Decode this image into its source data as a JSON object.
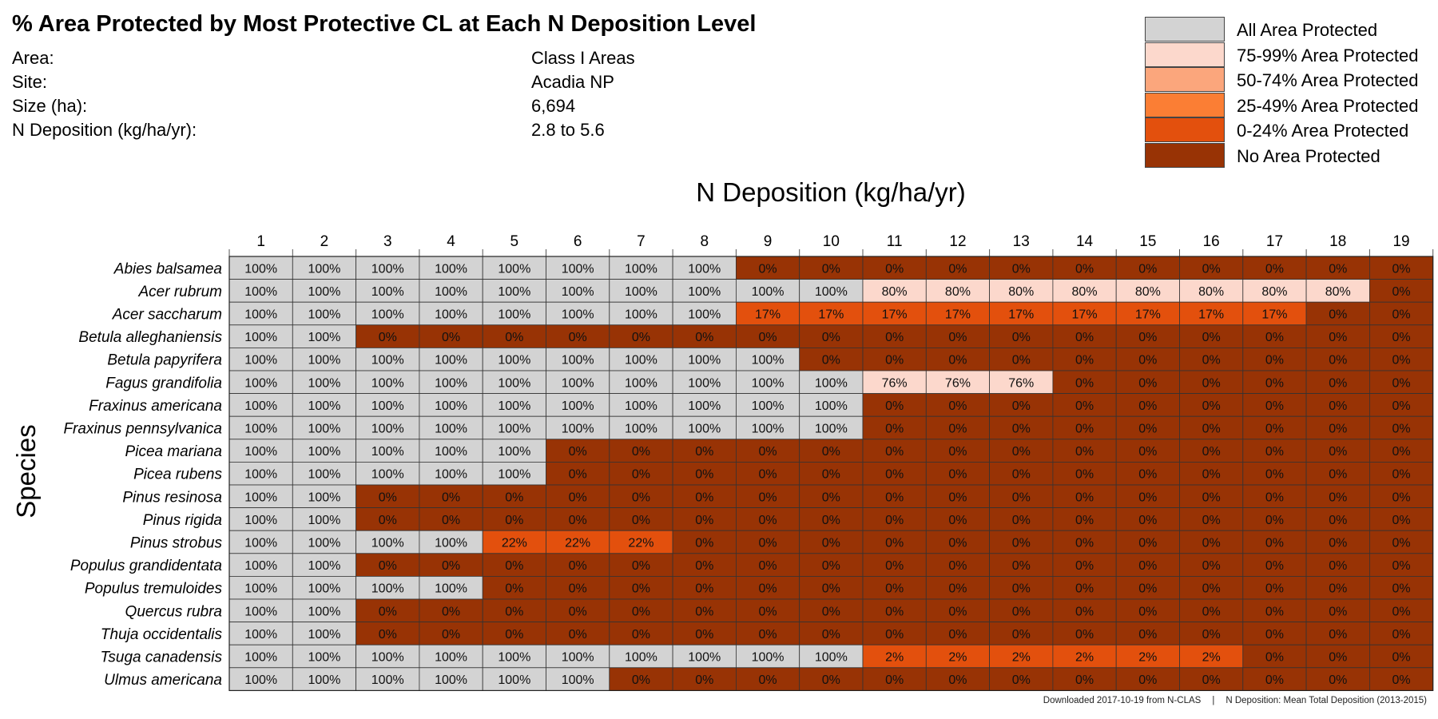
{
  "title": "% Area Protected by Most Protective CL at Each N Deposition Level",
  "info": [
    {
      "label": "Area:",
      "value": "Class I Areas"
    },
    {
      "label": "Site:",
      "value": "Acadia NP"
    },
    {
      "label": "Size (ha):",
      "value": "6,694"
    },
    {
      "label": "N Deposition (kg/ha/yr):",
      "value": "2.8 to 5.6"
    }
  ],
  "legend": [
    {
      "label": "All Area Protected",
      "color": "#d3d3d3"
    },
    {
      "label": "75-99% Area Protected",
      "color": "#fcd8cc"
    },
    {
      "label": "50-74% Area Protected",
      "color": "#fba67c"
    },
    {
      "label": "25-49% Area Protected",
      "color": "#fb7e34"
    },
    {
      "label": "0-24% Area Protected",
      "color": "#e3500d"
    },
    {
      "label": "No Area Protected",
      "color": "#983305"
    }
  ],
  "footer": {
    "left": "Downloaded 2017-10-19 from N-CLAS",
    "separator": "|",
    "right": "N Deposition: Mean Total Deposition (2013-2015)"
  },
  "chart_data": {
    "type": "heatmap",
    "xlabel": "N Deposition (kg/ha/yr)",
    "ylabel": "Species",
    "x": [
      1,
      2,
      3,
      4,
      5,
      6,
      7,
      8,
      9,
      10,
      11,
      12,
      13,
      14,
      15,
      16,
      17,
      18,
      19
    ],
    "rows": [
      {
        "species": "Abies balsamea",
        "values": [
          100,
          100,
          100,
          100,
          100,
          100,
          100,
          100,
          0,
          0,
          0,
          0,
          0,
          0,
          0,
          0,
          0,
          0,
          0
        ]
      },
      {
        "species": "Acer rubrum",
        "values": [
          100,
          100,
          100,
          100,
          100,
          100,
          100,
          100,
          100,
          100,
          80,
          80,
          80,
          80,
          80,
          80,
          80,
          80,
          0
        ]
      },
      {
        "species": "Acer saccharum",
        "values": [
          100,
          100,
          100,
          100,
          100,
          100,
          100,
          100,
          17,
          17,
          17,
          17,
          17,
          17,
          17,
          17,
          17,
          0,
          0
        ]
      },
      {
        "species": "Betula alleghaniensis",
        "values": [
          100,
          100,
          0,
          0,
          0,
          0,
          0,
          0,
          0,
          0,
          0,
          0,
          0,
          0,
          0,
          0,
          0,
          0,
          0
        ]
      },
      {
        "species": "Betula papyrifera",
        "values": [
          100,
          100,
          100,
          100,
          100,
          100,
          100,
          100,
          100,
          0,
          0,
          0,
          0,
          0,
          0,
          0,
          0,
          0,
          0
        ]
      },
      {
        "species": "Fagus grandifolia",
        "values": [
          100,
          100,
          100,
          100,
          100,
          100,
          100,
          100,
          100,
          100,
          76,
          76,
          76,
          0,
          0,
          0,
          0,
          0,
          0
        ]
      },
      {
        "species": "Fraxinus americana",
        "values": [
          100,
          100,
          100,
          100,
          100,
          100,
          100,
          100,
          100,
          100,
          0,
          0,
          0,
          0,
          0,
          0,
          0,
          0,
          0
        ]
      },
      {
        "species": "Fraxinus pennsylvanica",
        "values": [
          100,
          100,
          100,
          100,
          100,
          100,
          100,
          100,
          100,
          100,
          0,
          0,
          0,
          0,
          0,
          0,
          0,
          0,
          0
        ]
      },
      {
        "species": "Picea mariana",
        "values": [
          100,
          100,
          100,
          100,
          100,
          0,
          0,
          0,
          0,
          0,
          0,
          0,
          0,
          0,
          0,
          0,
          0,
          0,
          0
        ]
      },
      {
        "species": "Picea rubens",
        "values": [
          100,
          100,
          100,
          100,
          100,
          0,
          0,
          0,
          0,
          0,
          0,
          0,
          0,
          0,
          0,
          0,
          0,
          0,
          0
        ]
      },
      {
        "species": "Pinus resinosa",
        "values": [
          100,
          100,
          0,
          0,
          0,
          0,
          0,
          0,
          0,
          0,
          0,
          0,
          0,
          0,
          0,
          0,
          0,
          0,
          0
        ]
      },
      {
        "species": "Pinus rigida",
        "values": [
          100,
          100,
          0,
          0,
          0,
          0,
          0,
          0,
          0,
          0,
          0,
          0,
          0,
          0,
          0,
          0,
          0,
          0,
          0
        ]
      },
      {
        "species": "Pinus strobus",
        "values": [
          100,
          100,
          100,
          100,
          22,
          22,
          22,
          0,
          0,
          0,
          0,
          0,
          0,
          0,
          0,
          0,
          0,
          0,
          0
        ]
      },
      {
        "species": "Populus grandidentata",
        "values": [
          100,
          100,
          0,
          0,
          0,
          0,
          0,
          0,
          0,
          0,
          0,
          0,
          0,
          0,
          0,
          0,
          0,
          0,
          0
        ]
      },
      {
        "species": "Populus tremuloides",
        "values": [
          100,
          100,
          100,
          100,
          0,
          0,
          0,
          0,
          0,
          0,
          0,
          0,
          0,
          0,
          0,
          0,
          0,
          0,
          0
        ]
      },
      {
        "species": "Quercus rubra",
        "values": [
          100,
          100,
          0,
          0,
          0,
          0,
          0,
          0,
          0,
          0,
          0,
          0,
          0,
          0,
          0,
          0,
          0,
          0,
          0
        ]
      },
      {
        "species": "Thuja occidentalis",
        "values": [
          100,
          100,
          0,
          0,
          0,
          0,
          0,
          0,
          0,
          0,
          0,
          0,
          0,
          0,
          0,
          0,
          0,
          0,
          0
        ]
      },
      {
        "species": "Tsuga canadensis",
        "values": [
          100,
          100,
          100,
          100,
          100,
          100,
          100,
          100,
          100,
          100,
          2,
          2,
          2,
          2,
          2,
          2,
          0,
          0,
          0
        ]
      },
      {
        "species": "Ulmus americana",
        "values": [
          100,
          100,
          100,
          100,
          100,
          100,
          0,
          0,
          0,
          0,
          0,
          0,
          0,
          0,
          0,
          0,
          0,
          0,
          0
        ]
      }
    ],
    "value_suffix": "%"
  }
}
